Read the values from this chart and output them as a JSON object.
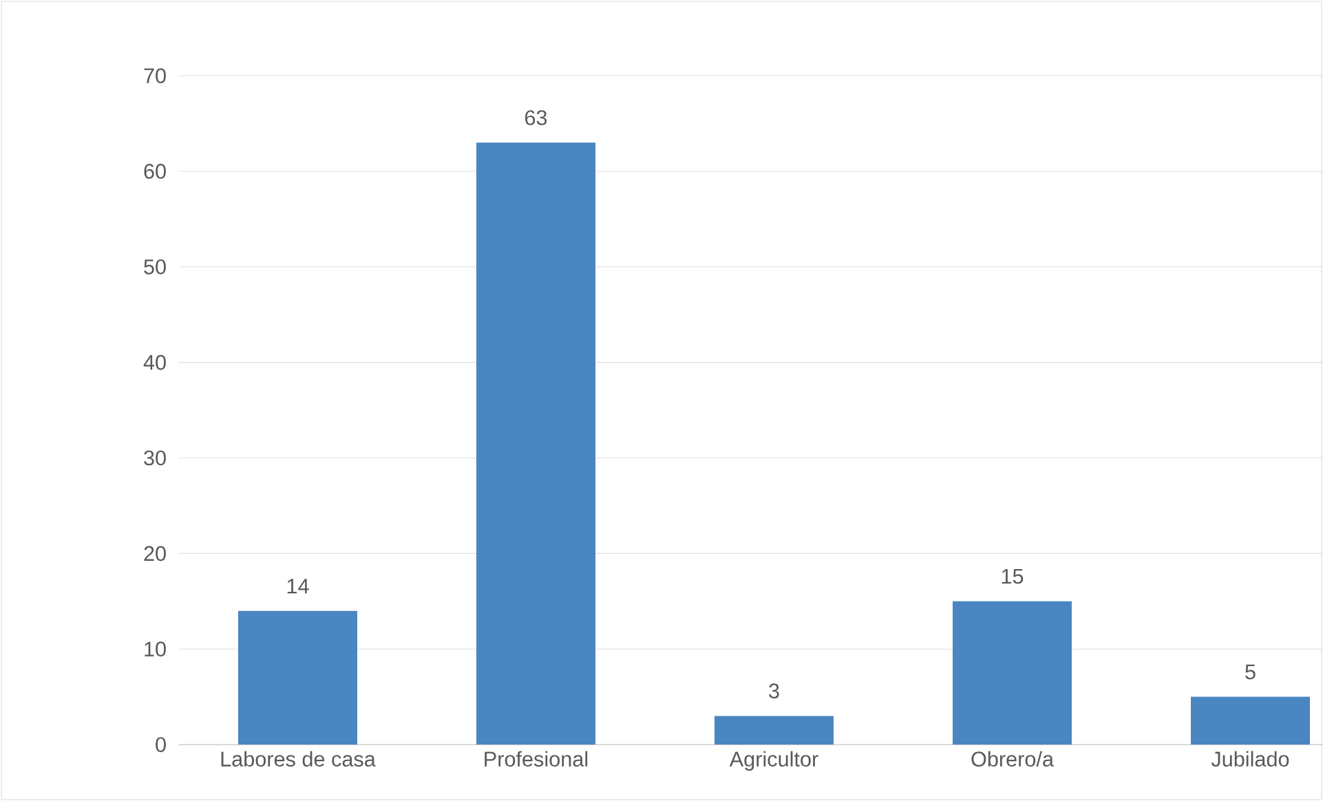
{
  "chart_data": {
    "type": "bar",
    "categories": [
      "Labores de casa",
      "Profesional",
      "Agricultor",
      "Obrero/a",
      "Jubilado"
    ],
    "values": [
      14,
      63,
      3,
      15,
      5
    ],
    "color": "#4a86c1",
    "ylim": [
      0,
      70
    ],
    "yticks": [
      0,
      10,
      20,
      30,
      40,
      50,
      60,
      70
    ],
    "grid": "y",
    "data_labels": true
  }
}
